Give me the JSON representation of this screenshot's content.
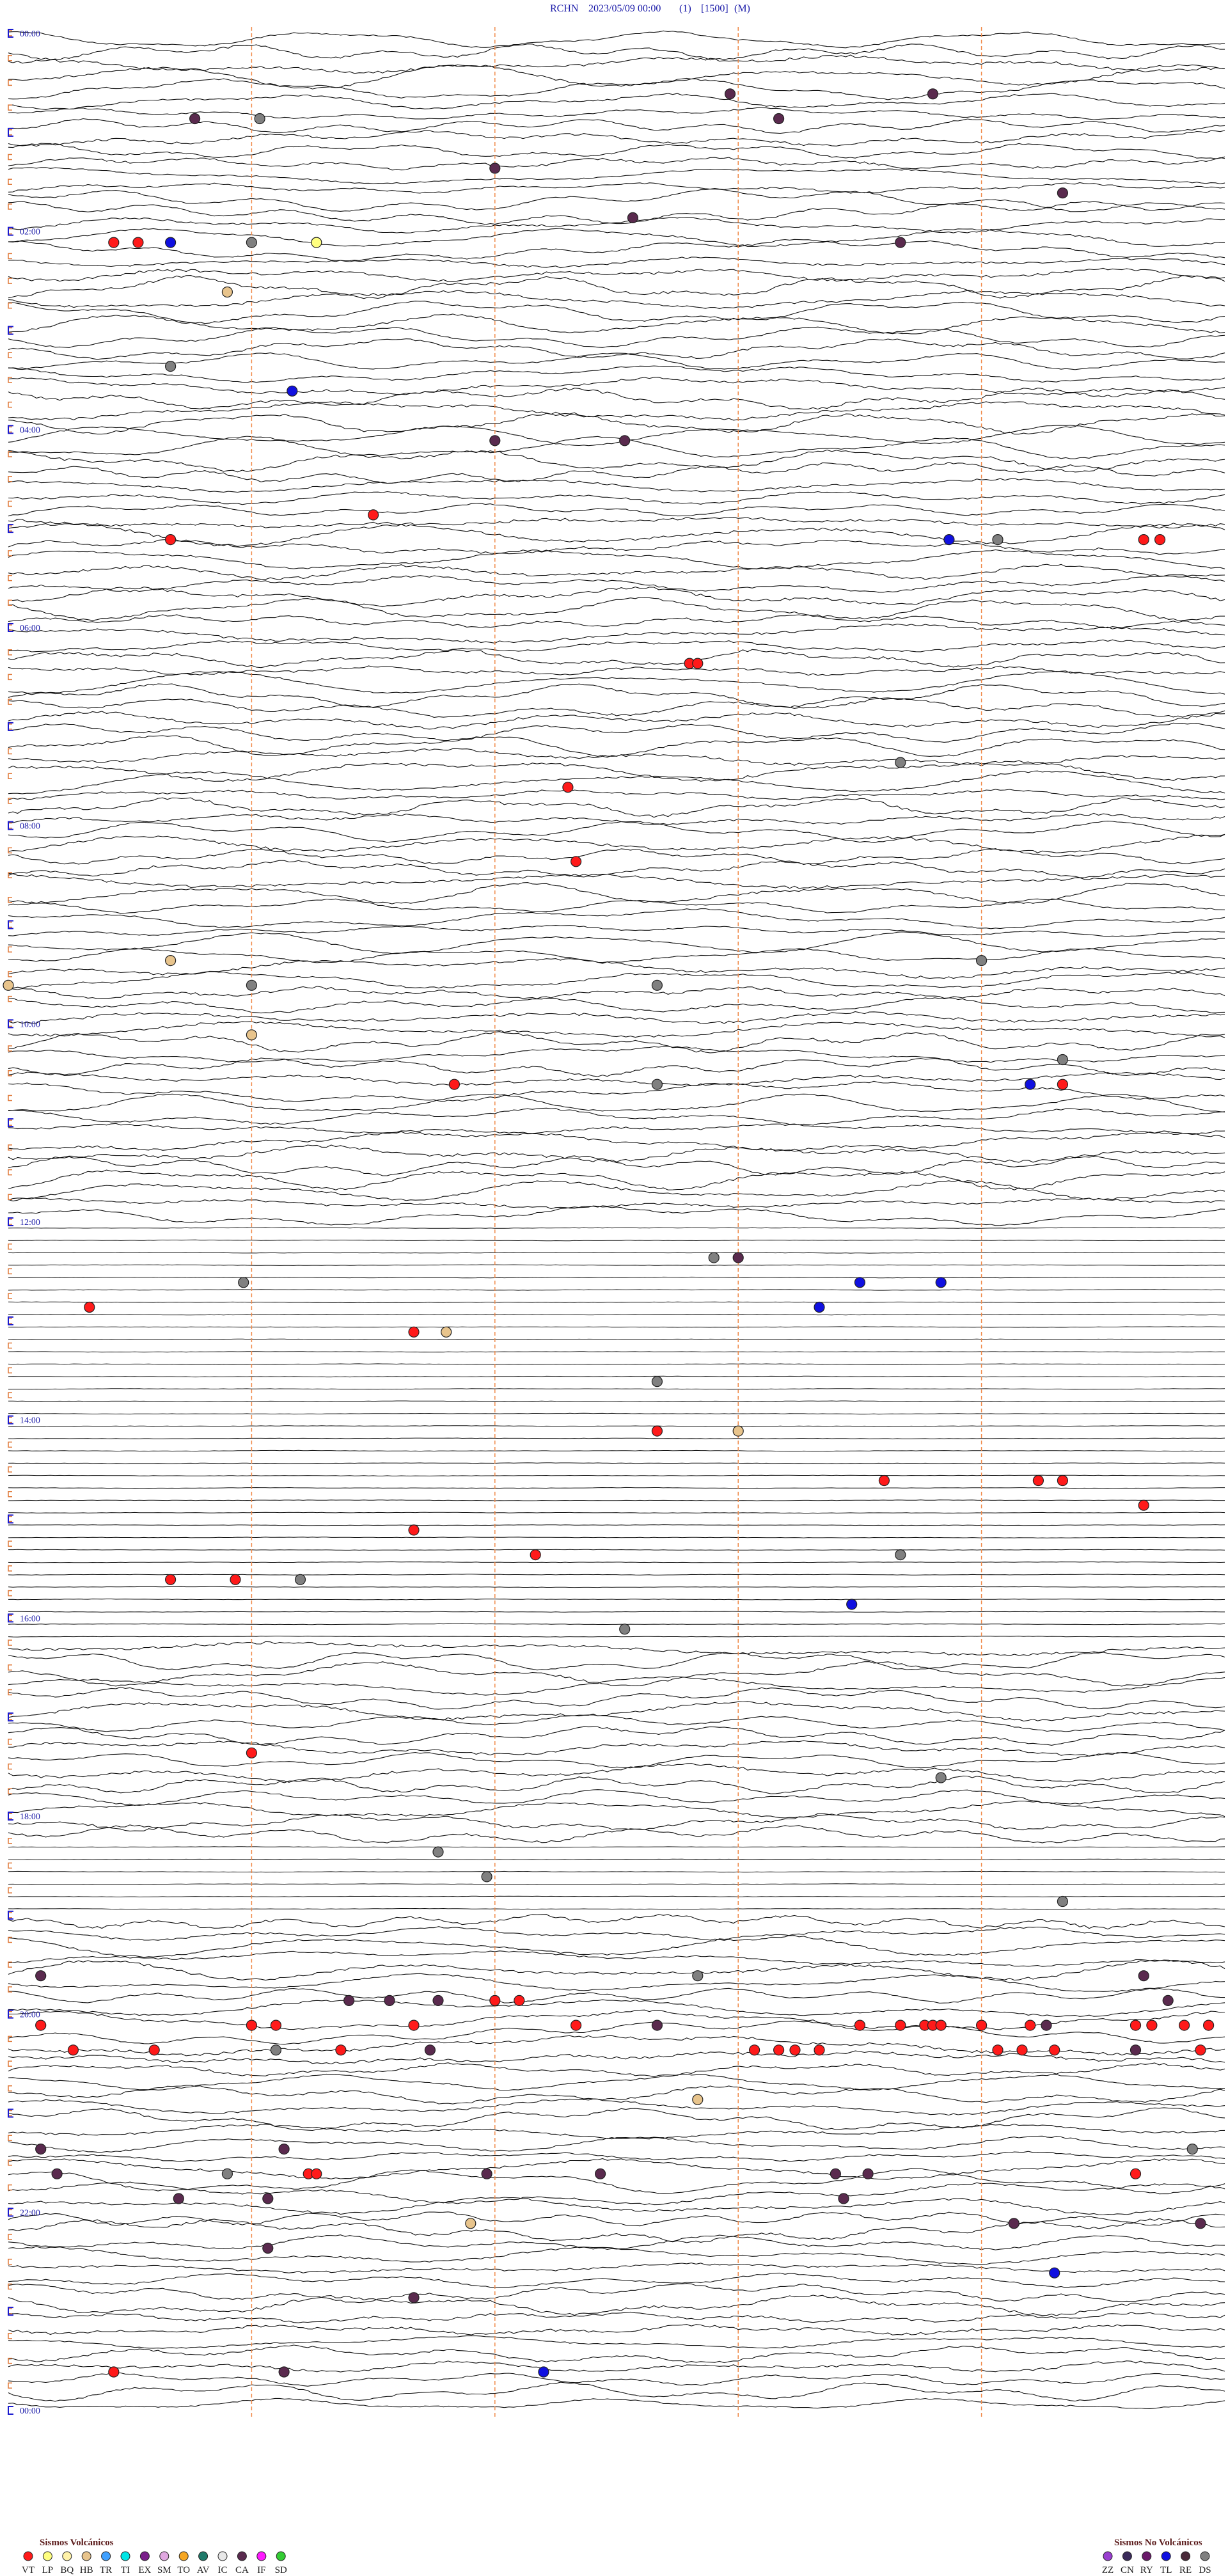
{
  "header": {
    "station": "RCHN",
    "datetime": "2023/05/09 00:00",
    "channel": "(1)",
    "scale": "[1500]",
    "mode": "(M)"
  },
  "time_range": [
    0,
    1440
  ],
  "line_minutes": 15,
  "time_labels": [
    "00:00",
    "02:00",
    "04:00",
    "06:00",
    "08:00",
    "10:00",
    "12:00",
    "14:00",
    "16:00",
    "18:00",
    "20:00",
    "22:00",
    "00:00"
  ],
  "legend": {
    "volcanic": {
      "title": "Sismos Volcánicos",
      "items": [
        {
          "code": "VT",
          "color": "#ff1a1a",
          "events": [
            121.3,
            121.6,
            289.5,
            302,
            314,
            314.2,
            383.4,
            383.5,
            456.9,
            502,
            635.5,
            643,
            766,
            785,
            848,
            880.8,
            882.7,
            883,
            899,
            905,
            921.5,
            932,
            932.8,
            1038,
            1191,
            1191.3,
            1200.4,
            1203,
            1203.3,
            1205,
            1207,
            1210.5,
            1211,
            1211.3,
            1211.4,
            1211.5,
            1212,
            1212.6,
            1213.9,
            1214.1,
            1214.5,
            1214.8,
            1215.8,
            1216.8,
            1219.1,
            1224.2,
            1224.5,
            1224.7,
            1225,
            1227.2,
            1227.5,
            1227.9,
            1229.7,
            1293.7,
            1293.8,
            1303.9,
            1411.3
          ]
        },
        {
          "code": "LP",
          "color": "#ffff80",
          "events": [
            123.8
          ]
        },
        {
          "code": "BQ",
          "color": "#fff2a8"
        },
        {
          "code": "HB",
          "color": "#e8c48c",
          "events": [
            152.7,
            557,
            570,
            603,
            785.4,
            849,
            1253.5,
            1325.7
          ]
        },
        {
          "code": "TR",
          "color": "#3fa0ff"
        },
        {
          "code": "TI",
          "color": "#00e5e5"
        },
        {
          "code": "EX",
          "color": "#7a1f8a"
        },
        {
          "code": "SM",
          "color": "#e0a8e0"
        },
        {
          "code": "TO",
          "color": "#f5a623"
        },
        {
          "code": "AV",
          "color": "#1f7a6a"
        },
        {
          "code": "IC",
          "color": "#e8e8e8"
        },
        {
          "code": "CA",
          "color": "#5a2a4e",
          "events": [
            38.9,
            41.4,
            47.3,
            54.5,
            81,
            103,
            112.7,
            131,
            246,
            247.6,
            744,
            1170.4,
            1184,
            1189.2,
            1189.7,
            1190.3,
            1199.3,
            1208,
            1212.8,
            1220.2,
            1228.9,
            1275.4,
            1278.4,
            1290.6,
            1295.9,
            1297.3,
            1300.2,
            1300.6,
            1307.1,
            1308.2,
            1315.3,
            1332.4,
            1334.7,
            1338.2,
            1370,
            1413.4
          ]
        },
        {
          "code": "IF",
          "color": "#ff1aff"
        },
        {
          "code": "SD",
          "color": "#33cc33"
        }
      ]
    },
    "non_volcanic": {
      "title": "Sismos No Volcánicos",
      "items": [
        {
          "code": "ZZ",
          "color": "#9a3fd0"
        },
        {
          "code": "CN",
          "color": "#3a2a5a"
        },
        {
          "code": "RY",
          "color": "#6a1a6a"
        },
        {
          "code": "TL",
          "color": "#1010e0",
          "events": [
            122,
            213.5,
            311.6,
            642.6,
            760.5,
            761.5,
            775,
            955.4,
            1362.9,
            1416.6
          ]
        },
        {
          "code": "RE",
          "color": "#4a2a3a"
        },
        {
          "code": "DS",
          "color": "#808080",
          "events": [
            48.1,
            123,
            197,
            312.2,
            446,
            567,
            573,
            578,
            628,
            638,
            743.7,
            752.9,
            818,
            926,
            933.6,
            967.6,
            1061.5,
            1100.3,
            1115.9,
            1138,
            1178.5,
            1218.3,
            1289.6,
            1292.7
          ]
        }
      ]
    }
  }
}
